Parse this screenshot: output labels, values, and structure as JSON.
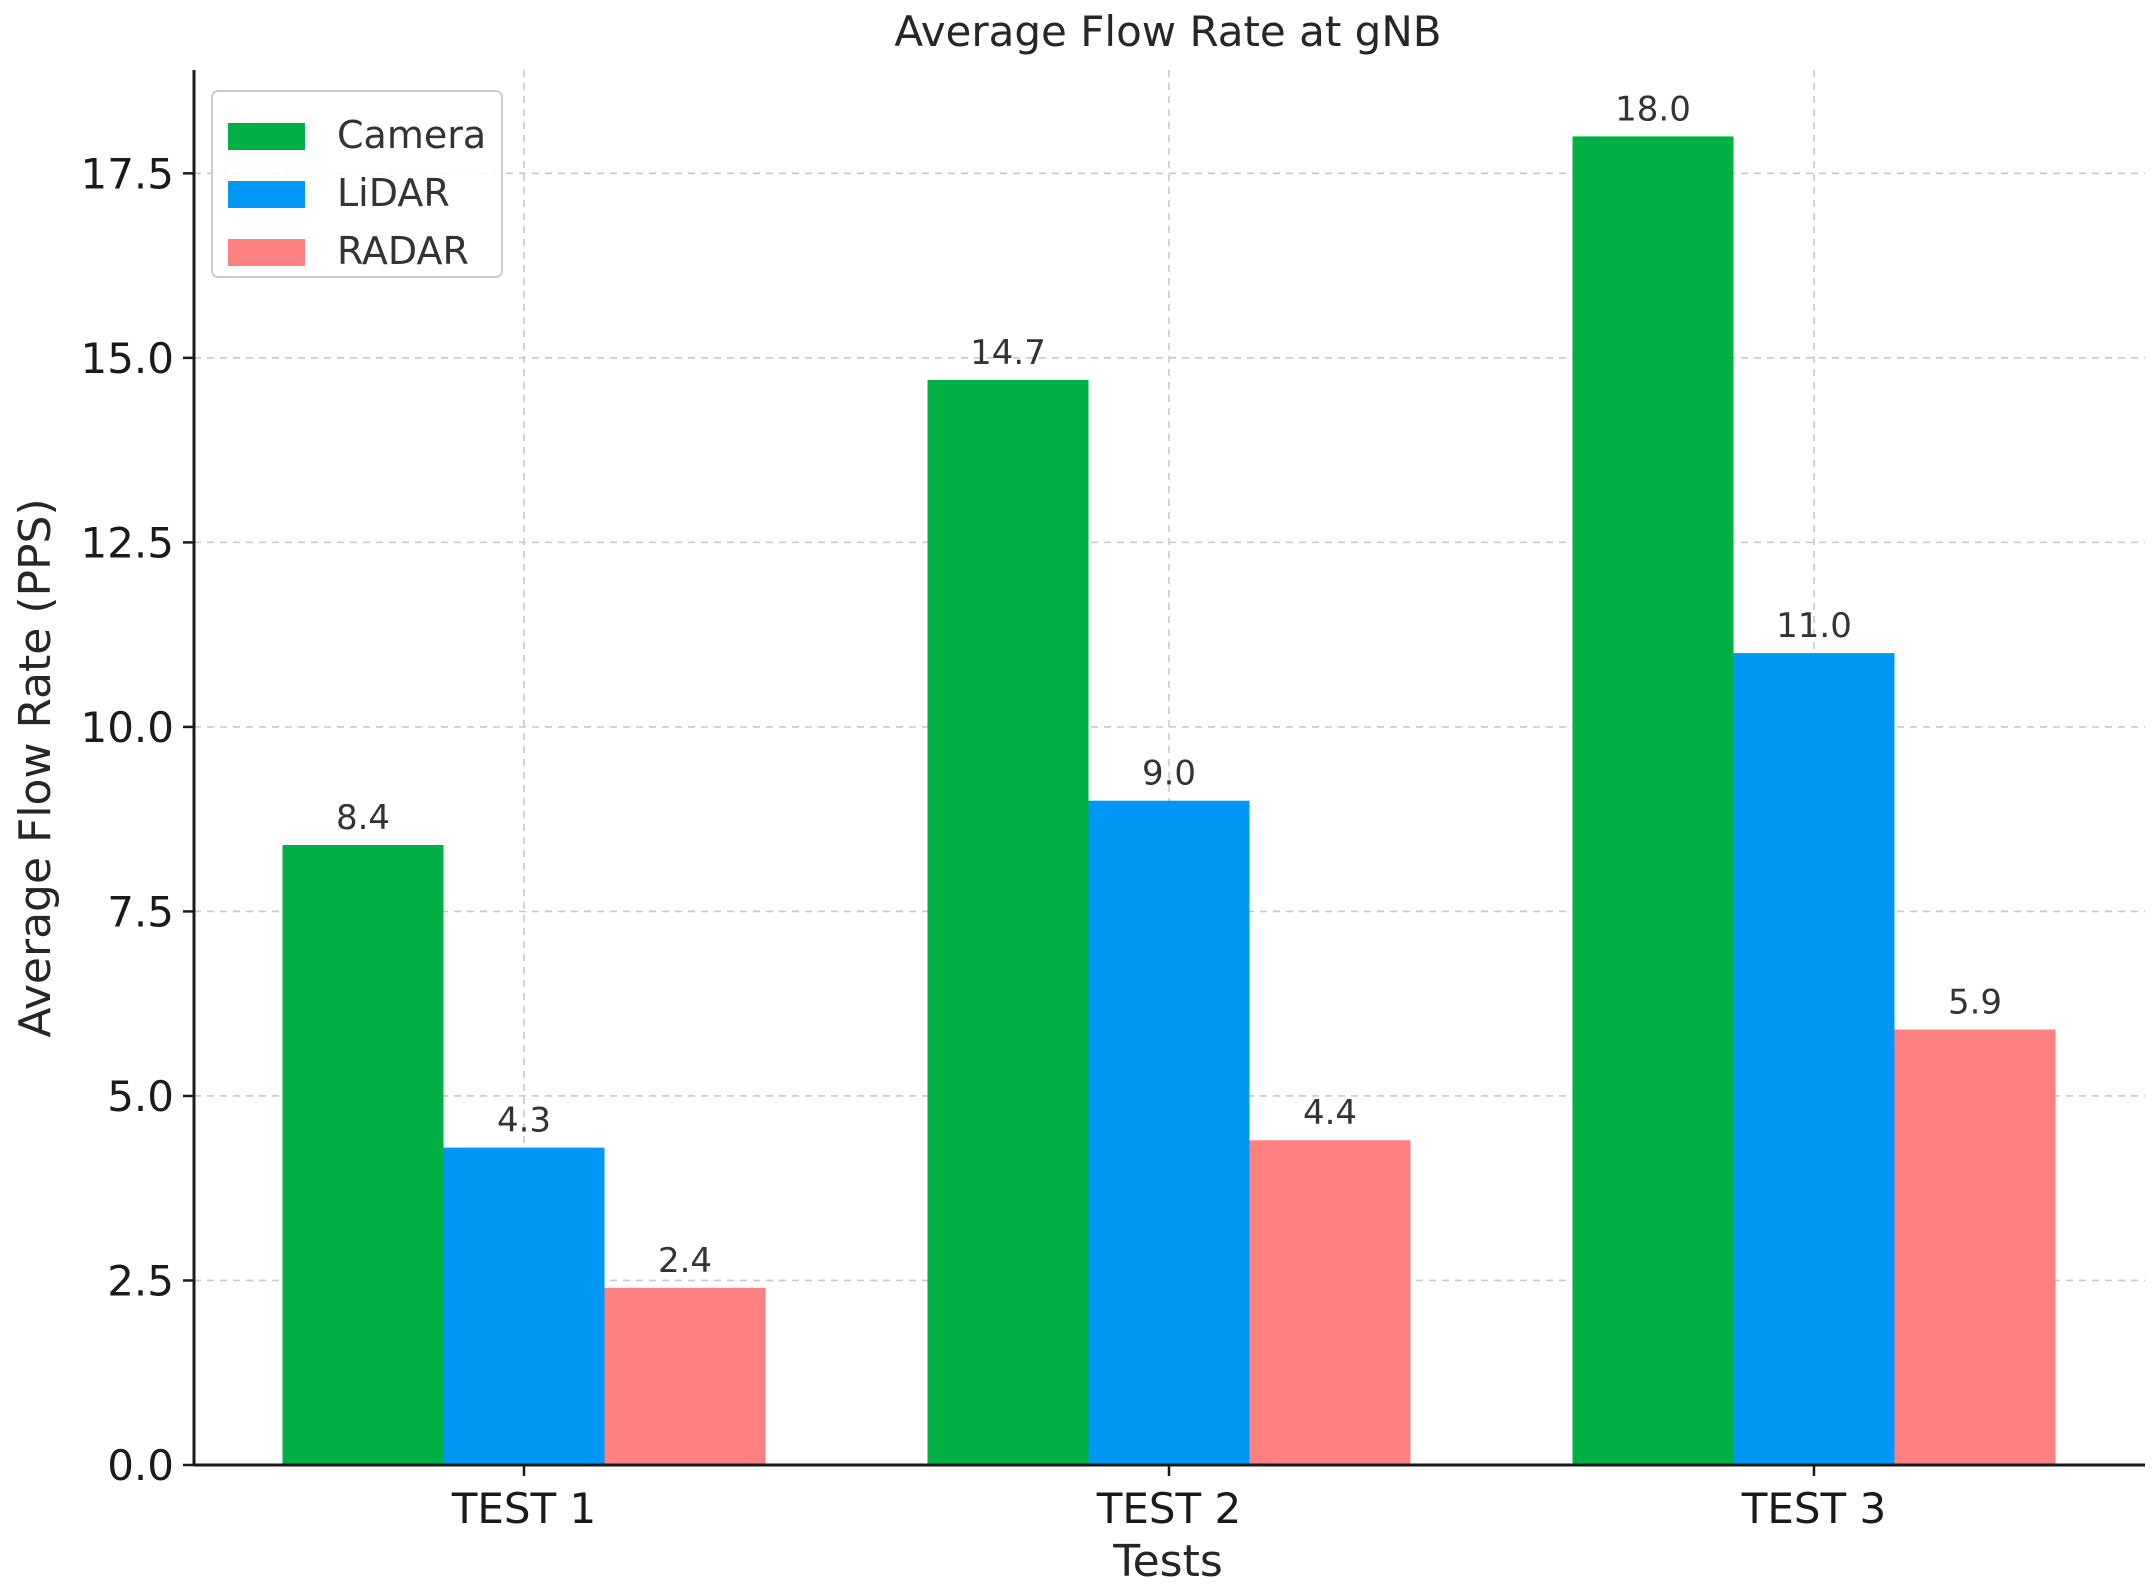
{
  "chart_data": {
    "type": "bar",
    "title": "Average Flow Rate at gNB",
    "xlabel": "Tests",
    "ylabel": "Average Flow Rate (PPS)",
    "categories": [
      "TEST 1",
      "TEST 2",
      "TEST 3"
    ],
    "series": [
      {
        "name": "Camera",
        "color": "#00b045",
        "values": [
          8.4,
          14.7,
          18.0
        ],
        "labels": [
          "8.4",
          "14.7",
          "18.0"
        ]
      },
      {
        "name": "LiDAR",
        "color": "#0098f4",
        "values": [
          4.3,
          9.0,
          11.0
        ],
        "labels": [
          "4.3",
          "9.0",
          "11.0"
        ]
      },
      {
        "name": "RADAR",
        "color": "#ff8080",
        "values": [
          2.4,
          4.4,
          5.9
        ],
        "labels": [
          "2.4",
          "4.4",
          "5.9"
        ]
      }
    ],
    "ylim": [
      0,
      18.9
    ],
    "yticks": [
      0.0,
      2.5,
      5.0,
      7.5,
      10.0,
      12.5,
      15.0,
      17.5
    ],
    "ytick_labels": [
      "0.0",
      "2.5",
      "5.0",
      "7.5",
      "10.0",
      "12.5",
      "15.0",
      "17.5"
    ],
    "grid": true,
    "legend_position": "top-left"
  }
}
